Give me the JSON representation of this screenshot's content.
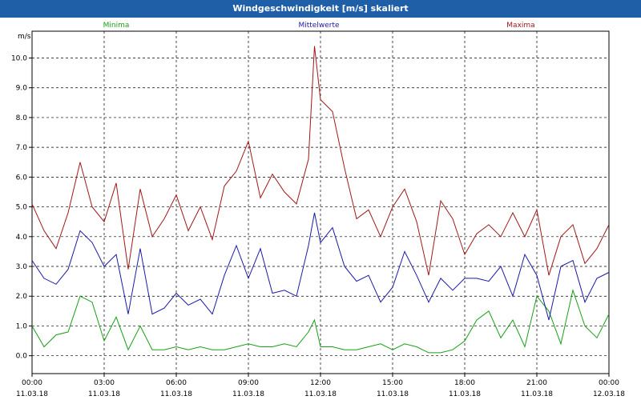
{
  "window": {
    "title": "Windgeschwindigkeit [m/s] skaliert"
  },
  "colors": {
    "minima": "#18a018",
    "mittel": "#1a1aa8",
    "maxima": "#a01818",
    "titlebar": "#1f5fa8"
  },
  "chart_data": {
    "type": "line",
    "title": "Windgeschwindigkeit [m/s] skaliert",
    "ylabel": "m/s",
    "ylim": [
      -0.6,
      10.9
    ],
    "y_ticks": [
      "0.0",
      "1.0",
      "2.0",
      "3.0",
      "4.0",
      "5.0",
      "6.0",
      "7.0",
      "8.0",
      "9.0",
      "10.0"
    ],
    "x_ticks": [
      {
        "time": "00:00",
        "date": "11.03.18"
      },
      {
        "time": "03:00",
        "date": "11.03.18"
      },
      {
        "time": "06:00",
        "date": "11.03.18"
      },
      {
        "time": "09:00",
        "date": "11.03.18"
      },
      {
        "time": "12:00",
        "date": "11.03.18"
      },
      {
        "time": "15:00",
        "date": "11.03.18"
      },
      {
        "time": "18:00",
        "date": "11.03.18"
      },
      {
        "time": "21:00",
        "date": "11.03.18"
      },
      {
        "time": "00:00",
        "date": "12.03.18"
      }
    ],
    "x_hours": [
      0,
      0.5,
      1,
      1.5,
      2,
      2.5,
      3,
      3.5,
      4,
      4.5,
      5,
      5.5,
      6,
      6.5,
      7,
      7.5,
      8,
      8.5,
      9,
      9.5,
      10,
      10.5,
      11,
      11.5,
      11.75,
      12,
      12.5,
      13,
      13.5,
      14,
      14.5,
      15,
      15.5,
      16,
      16.5,
      17,
      17.5,
      18,
      18.5,
      19,
      19.5,
      20,
      20.5,
      21,
      21.5,
      22,
      22.5,
      23,
      23.5,
      24
    ],
    "series": [
      {
        "name": "Minima",
        "values": [
          1.0,
          0.3,
          0.7,
          0.8,
          2.0,
          1.8,
          0.5,
          1.3,
          0.2,
          1.0,
          0.2,
          0.2,
          0.3,
          0.2,
          0.3,
          0.2,
          0.2,
          0.3,
          0.4,
          0.3,
          0.3,
          0.4,
          0.3,
          0.8,
          1.2,
          0.3,
          0.3,
          0.2,
          0.2,
          0.3,
          0.4,
          0.2,
          0.4,
          0.3,
          0.1,
          0.1,
          0.2,
          0.5,
          1.2,
          1.5,
          0.6,
          1.2,
          0.3,
          2.0,
          1.5,
          0.4,
          2.2,
          1.0,
          0.6,
          1.4
        ]
      },
      {
        "name": "Mittelwerte",
        "values": [
          3.2,
          2.6,
          2.4,
          2.9,
          4.2,
          3.8,
          3.0,
          3.4,
          1.4,
          3.6,
          1.4,
          1.6,
          2.1,
          1.7,
          1.9,
          1.4,
          2.7,
          3.7,
          2.6,
          3.6,
          2.1,
          2.2,
          2.0,
          3.7,
          4.8,
          3.8,
          4.3,
          3.0,
          2.5,
          2.7,
          1.8,
          2.3,
          3.5,
          2.7,
          1.8,
          2.6,
          2.2,
          2.6,
          2.6,
          2.5,
          3.0,
          2.0,
          3.4,
          2.7,
          1.2,
          3.0,
          3.2,
          1.8,
          2.6,
          2.8
        ]
      },
      {
        "name": "Maxima",
        "values": [
          5.1,
          4.2,
          3.6,
          4.8,
          6.5,
          5.0,
          4.5,
          5.8,
          2.9,
          5.6,
          4.0,
          4.6,
          5.4,
          4.2,
          5.0,
          3.9,
          5.7,
          6.2,
          7.2,
          5.3,
          6.1,
          5.5,
          5.1,
          6.6,
          10.4,
          8.6,
          8.2,
          6.3,
          4.6,
          4.9,
          4.0,
          5.0,
          5.6,
          4.5,
          2.7,
          5.2,
          4.6,
          3.4,
          4.1,
          4.4,
          4.0,
          4.8,
          4.0,
          4.9,
          2.7,
          4.0,
          4.4,
          3.1,
          3.6,
          4.4
        ]
      }
    ]
  }
}
